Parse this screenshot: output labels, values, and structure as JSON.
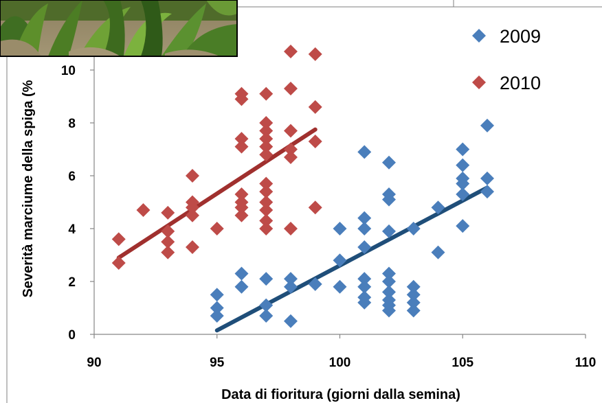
{
  "chart_data": {
    "type": "scatter",
    "title": "",
    "xlabel": "Data di fioritura (giorni dalla semina)",
    "ylabel": "Severità marciume della spiga (%",
    "xlim": [
      90,
      110
    ],
    "ylim": [
      0,
      11
    ],
    "x_ticks": [
      "90",
      "95",
      "100",
      "105",
      "110"
    ],
    "y_ticks": [
      "0",
      "2",
      "4",
      "6",
      "8",
      "10"
    ],
    "grid": false,
    "legend_position": "top-right",
    "colors": {
      "2009": "#4a7ebb",
      "2010": "#be4b48",
      "trend_2009": "#1f4e79",
      "trend_2010": "#a0302e"
    },
    "series": [
      {
        "name": "2009",
        "marker": "diamond",
        "points": [
          [
            95,
            1.5
          ],
          [
            95,
            1.0
          ],
          [
            95,
            0.7
          ],
          [
            96,
            2.3
          ],
          [
            96,
            1.8
          ],
          [
            97,
            2.1
          ],
          [
            97,
            1.1
          ],
          [
            97,
            0.7
          ],
          [
            98,
            2.1
          ],
          [
            98,
            1.8
          ],
          [
            98,
            0.5
          ],
          [
            99,
            1.9
          ],
          [
            100,
            4.0
          ],
          [
            100,
            2.8
          ],
          [
            100,
            1.8
          ],
          [
            101,
            6.9
          ],
          [
            101,
            4.4
          ],
          [
            101,
            4.0
          ],
          [
            101,
            3.3
          ],
          [
            101,
            2.1
          ],
          [
            101,
            1.8
          ],
          [
            101,
            1.4
          ],
          [
            101,
            1.2
          ],
          [
            102,
            6.5
          ],
          [
            102,
            5.3
          ],
          [
            102,
            5.1
          ],
          [
            102,
            3.9
          ],
          [
            102,
            2.3
          ],
          [
            102,
            2.0
          ],
          [
            102,
            1.6
          ],
          [
            102,
            1.3
          ],
          [
            102,
            1.1
          ],
          [
            102,
            0.9
          ],
          [
            103,
            4.0
          ],
          [
            103,
            1.8
          ],
          [
            103,
            1.5
          ],
          [
            103,
            1.2
          ],
          [
            103,
            0.9
          ],
          [
            104,
            4.8
          ],
          [
            104,
            3.1
          ],
          [
            105,
            7.0
          ],
          [
            105,
            6.4
          ],
          [
            105,
            5.9
          ],
          [
            105,
            5.7
          ],
          [
            105,
            5.3
          ],
          [
            105,
            4.1
          ],
          [
            106,
            7.9
          ],
          [
            106,
            5.9
          ],
          [
            106,
            5.4
          ]
        ],
        "trendline": {
          "x": [
            95,
            106
          ],
          "y": [
            0.15,
            5.55
          ]
        }
      },
      {
        "name": "2010",
        "marker": "diamond",
        "points": [
          [
            91,
            3.6
          ],
          [
            91,
            2.7
          ],
          [
            92,
            4.7
          ],
          [
            93,
            4.6
          ],
          [
            93,
            3.9
          ],
          [
            93,
            3.5
          ],
          [
            93,
            3.1
          ],
          [
            94,
            6.0
          ],
          [
            94,
            5.0
          ],
          [
            94,
            4.8
          ],
          [
            94,
            4.5
          ],
          [
            94,
            3.3
          ],
          [
            95,
            4.0
          ],
          [
            96,
            9.1
          ],
          [
            96,
            8.9
          ],
          [
            96,
            7.4
          ],
          [
            96,
            7.1
          ],
          [
            96,
            5.3
          ],
          [
            96,
            5.0
          ],
          [
            96,
            4.8
          ],
          [
            96,
            4.5
          ],
          [
            97,
            9.1
          ],
          [
            97,
            8.0
          ],
          [
            97,
            7.7
          ],
          [
            97,
            7.4
          ],
          [
            97,
            7.1
          ],
          [
            97,
            6.8
          ],
          [
            97,
            5.7
          ],
          [
            97,
            5.4
          ],
          [
            97,
            5.0
          ],
          [
            97,
            4.7
          ],
          [
            97,
            4.3
          ],
          [
            97,
            4.0
          ],
          [
            98,
            10.7
          ],
          [
            98,
            9.3
          ],
          [
            98,
            7.7
          ],
          [
            98,
            7.0
          ],
          [
            98,
            6.7
          ],
          [
            98,
            4.0
          ],
          [
            99,
            10.6
          ],
          [
            99,
            8.6
          ],
          [
            99,
            7.3
          ],
          [
            99,
            4.8
          ]
        ],
        "trendline": {
          "x": [
            91,
            99
          ],
          "y": [
            2.9,
            7.75
          ]
        }
      }
    ]
  },
  "photo": {
    "description_icon": "corn-field-photo"
  }
}
